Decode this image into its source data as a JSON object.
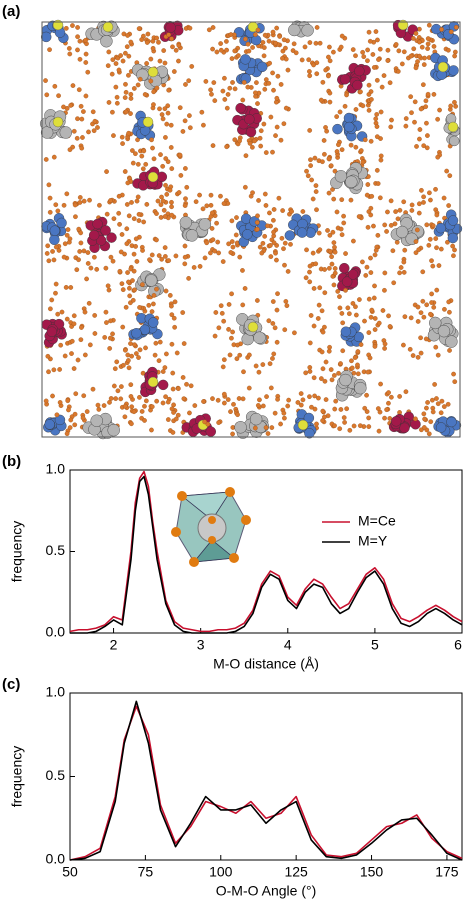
{
  "image": {
    "panel_label": "(a)"
  },
  "chart_data": [
    {
      "type": "line",
      "panel_label": "(b)",
      "xlabel": "M-O distance (Å)",
      "ylabel": "frequency",
      "x": [
        1.5,
        1.6,
        1.7,
        1.8,
        1.9,
        2.0,
        2.1,
        2.2,
        2.25,
        2.3,
        2.35,
        2.4,
        2.45,
        2.5,
        2.6,
        2.7,
        2.8,
        2.9,
        3.0,
        3.1,
        3.2,
        3.3,
        3.4,
        3.5,
        3.6,
        3.7,
        3.8,
        3.9,
        4.0,
        4.1,
        4.2,
        4.3,
        4.4,
        4.5,
        4.6,
        4.7,
        4.8,
        4.9,
        5.0,
        5.1,
        5.2,
        5.3,
        5.4,
        5.5,
        5.6,
        5.7,
        5.8,
        5.9,
        6.0
      ],
      "series": [
        {
          "name": "M=Ce",
          "color": "#c8102e",
          "values": [
            0.01,
            0.02,
            0.02,
            0.03,
            0.05,
            0.1,
            0.08,
            0.5,
            0.8,
            0.95,
            0.99,
            0.9,
            0.68,
            0.5,
            0.2,
            0.07,
            0.03,
            0.02,
            0.01,
            0.01,
            0.02,
            0.02,
            0.03,
            0.06,
            0.14,
            0.3,
            0.38,
            0.35,
            0.22,
            0.17,
            0.27,
            0.33,
            0.3,
            0.22,
            0.15,
            0.18,
            0.27,
            0.36,
            0.4,
            0.33,
            0.18,
            0.09,
            0.07,
            0.1,
            0.14,
            0.17,
            0.14,
            0.1,
            0.07
          ]
        },
        {
          "name": "M=Y",
          "color": "#000000",
          "values": [
            0,
            0,
            0,
            0.01,
            0.04,
            0.08,
            0.05,
            0.45,
            0.75,
            0.93,
            0.96,
            0.85,
            0.65,
            0.45,
            0.18,
            0.05,
            0.01,
            0,
            0,
            0,
            0,
            0,
            0.01,
            0.04,
            0.12,
            0.28,
            0.36,
            0.33,
            0.2,
            0.15,
            0.25,
            0.3,
            0.28,
            0.18,
            0.12,
            0.15,
            0.25,
            0.34,
            0.38,
            0.3,
            0.15,
            0.06,
            0.04,
            0.07,
            0.12,
            0.15,
            0.12,
            0.08,
            0.05
          ]
        }
      ],
      "xlim": [
        1.5,
        6
      ],
      "xticks": [
        2,
        3,
        4,
        5,
        6
      ],
      "ylim": [
        0,
        1.0
      ],
      "yticks": [
        {
          "value": 0,
          "label": "0.0"
        },
        {
          "value": 0.5,
          "label": "0.5"
        },
        {
          "value": 1.0,
          "label": "1.0"
        }
      ],
      "legend": "upper right"
    },
    {
      "type": "line",
      "panel_label": "(c)",
      "xlabel": "O-M-O Angle (°)",
      "ylabel": "frequency",
      "x": [
        50,
        55,
        60,
        65,
        68,
        72,
        76,
        80,
        85,
        90,
        95,
        100,
        105,
        110,
        115,
        120,
        125,
        130,
        135,
        140,
        145,
        150,
        155,
        160,
        165,
        170,
        175,
        180
      ],
      "series": [
        {
          "color": "#c8102e",
          "values": [
            0,
            0.02,
            0.07,
            0.38,
            0.72,
            0.92,
            0.75,
            0.33,
            0.1,
            0.2,
            0.35,
            0.32,
            0.28,
            0.35,
            0.25,
            0.28,
            0.38,
            0.15,
            0.03,
            0.02,
            0.04,
            0.12,
            0.2,
            0.22,
            0.27,
            0.13,
            0.05,
            0.01
          ]
        },
        {
          "color": "#000000",
          "values": [
            0,
            0.01,
            0.05,
            0.35,
            0.7,
            0.95,
            0.7,
            0.3,
            0.08,
            0.22,
            0.38,
            0.3,
            0.3,
            0.33,
            0.22,
            0.3,
            0.35,
            0.12,
            0.02,
            0.01,
            0.03,
            0.1,
            0.18,
            0.24,
            0.25,
            0.15,
            0.04,
            0
          ]
        }
      ],
      "xlim": [
        50,
        180
      ],
      "xticks": [
        50,
        75,
        100,
        125,
        150,
        175
      ],
      "ylim": [
        0,
        1.0
      ],
      "yticks": [
        {
          "value": 0,
          "label": "0.0"
        },
        {
          "value": 0.5,
          "label": "0.5"
        },
        {
          "value": 1.0,
          "label": "1.0"
        }
      ]
    }
  ]
}
